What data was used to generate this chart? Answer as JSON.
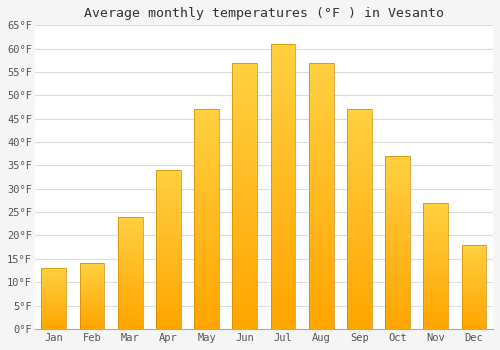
{
  "title": "Average monthly temperatures (°F ) in Vesanto",
  "months": [
    "Jan",
    "Feb",
    "Mar",
    "Apr",
    "May",
    "Jun",
    "Jul",
    "Aug",
    "Sep",
    "Oct",
    "Nov",
    "Dec"
  ],
  "values": [
    13,
    14,
    24,
    34,
    47,
    57,
    61,
    57,
    47,
    37,
    27,
    18
  ],
  "ylim": [
    0,
    65
  ],
  "yticks": [
    0,
    5,
    10,
    15,
    20,
    25,
    30,
    35,
    40,
    45,
    50,
    55,
    60,
    65
  ],
  "bar_color_bottom": "#FFA500",
  "bar_color_top": "#FFD040",
  "bar_edge_color": "#CC8800",
  "background_color": "#F5F5F5",
  "plot_bg_color": "#FFFFFF",
  "grid_color": "#DDDDDD",
  "title_fontsize": 9.5,
  "tick_fontsize": 7.5,
  "title_color": "#333333",
  "tick_color": "#555555"
}
